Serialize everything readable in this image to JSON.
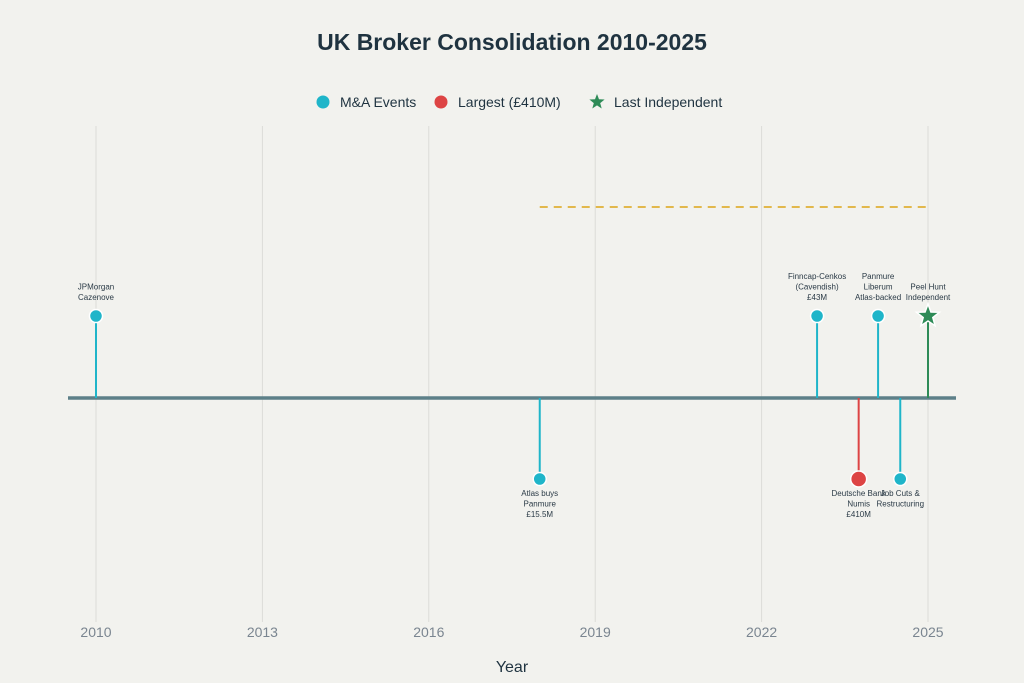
{
  "chart_data": {
    "type": "timeline",
    "title": "UK Broker Consolidation 2010-2025",
    "xlabel": "Year",
    "xlim": [
      2009.5,
      2025.5
    ],
    "ticks": [
      2010,
      2013,
      2016,
      2019,
      2022,
      2025
    ],
    "grid": true,
    "legend_position": "top-center",
    "legend": [
      {
        "name": "M&A Events",
        "marker": "circle",
        "color": "#1fb5c9"
      },
      {
        "name": "Largest (£410M)",
        "marker": "circle",
        "color": "#dd4444"
      },
      {
        "name": "Last Independent",
        "marker": "star",
        "color": "#2e8b57"
      }
    ],
    "reference_line": {
      "x_start": 2018,
      "x_end": 2025,
      "color": "#e2b84c",
      "style": "dashed"
    },
    "events": [
      {
        "year": 2010.0,
        "side": "above",
        "category": "M&A Events",
        "label": [
          "JPMorgan",
          "Cazenove"
        ]
      },
      {
        "year": 2018.0,
        "side": "below",
        "category": "M&A Events",
        "label": [
          "Atlas buys",
          "Panmure",
          "£15.5M"
        ]
      },
      {
        "year": 2023.0,
        "side": "above",
        "category": "M&A Events",
        "label": [
          "Finncap-Cenkos",
          "(Cavendish)",
          "£43M"
        ]
      },
      {
        "year": 2023.75,
        "side": "below",
        "category": "Largest (£410M)",
        "label": [
          "Deutsche Bank",
          "Numis",
          "£410M"
        ]
      },
      {
        "year": 2024.1,
        "side": "above",
        "category": "M&A Events",
        "label": [
          "Panmure",
          "Liberum",
          "Atlas-backed"
        ]
      },
      {
        "year": 2024.5,
        "side": "below",
        "category": "M&A Events",
        "label": [
          "Job Cuts &",
          "Restructuring"
        ]
      },
      {
        "year": 2025.0,
        "side": "above",
        "category": "Last Independent",
        "label": [
          "Peel Hunt",
          "Independent"
        ]
      }
    ]
  }
}
